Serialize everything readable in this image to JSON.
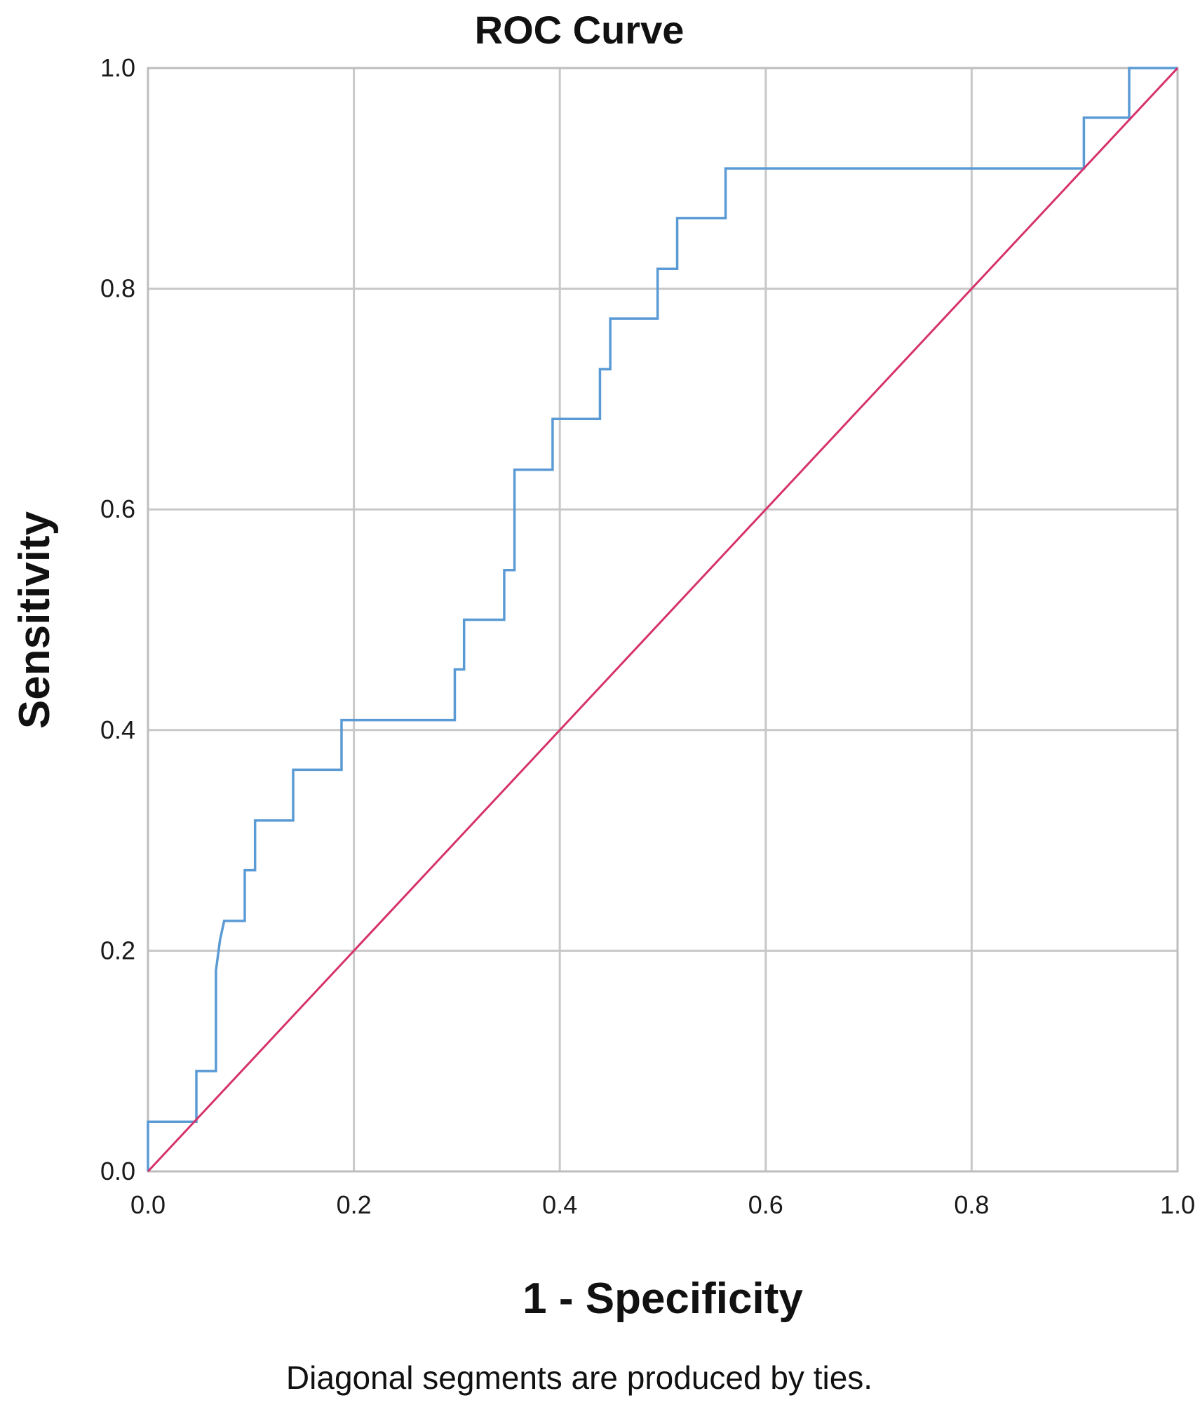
{
  "chart_data": {
    "type": "line",
    "title": "ROC Curve",
    "xlabel": "1 - Specificity",
    "ylabel": "Sensitivity",
    "footnote": "Diagonal segments are produced by ties.",
    "xlim": [
      0,
      1
    ],
    "ylim": [
      0,
      1
    ],
    "x_ticks": [
      "0.0",
      "0.2",
      "0.4",
      "0.6",
      "0.8",
      "1.0"
    ],
    "y_ticks": [
      "0.0",
      "0.2",
      "0.4",
      "0.6",
      "0.8",
      "1.0"
    ],
    "grid": true,
    "series": [
      {
        "color": "#5b9bd5",
        "x": [
          0.0,
          0.0,
          0.047,
          0.047,
          0.066,
          0.066,
          0.07,
          0.074,
          0.094,
          0.094,
          0.104,
          0.104,
          0.141,
          0.141,
          0.188,
          0.188,
          0.298,
          0.298,
          0.307,
          0.307,
          0.346,
          0.346,
          0.356,
          0.356,
          0.393,
          0.393,
          0.439,
          0.439,
          0.449,
          0.449,
          0.495,
          0.495,
          0.514,
          0.514,
          0.561,
          0.561,
          0.909,
          0.909,
          0.953,
          0.953,
          1.0
        ],
        "y": [
          0.0,
          0.045,
          0.045,
          0.091,
          0.091,
          0.182,
          0.21,
          0.227,
          0.227,
          0.273,
          0.273,
          0.318,
          0.318,
          0.364,
          0.364,
          0.409,
          0.409,
          0.455,
          0.455,
          0.5,
          0.5,
          0.545,
          0.545,
          0.636,
          0.636,
          0.682,
          0.682,
          0.727,
          0.727,
          0.773,
          0.773,
          0.818,
          0.818,
          0.864,
          0.864,
          0.909,
          0.909,
          0.955,
          0.955,
          1.0,
          1.0
        ]
      },
      {
        "color": "#d6336c",
        "x": [
          0,
          1
        ],
        "y": [
          0,
          1
        ]
      }
    ]
  }
}
